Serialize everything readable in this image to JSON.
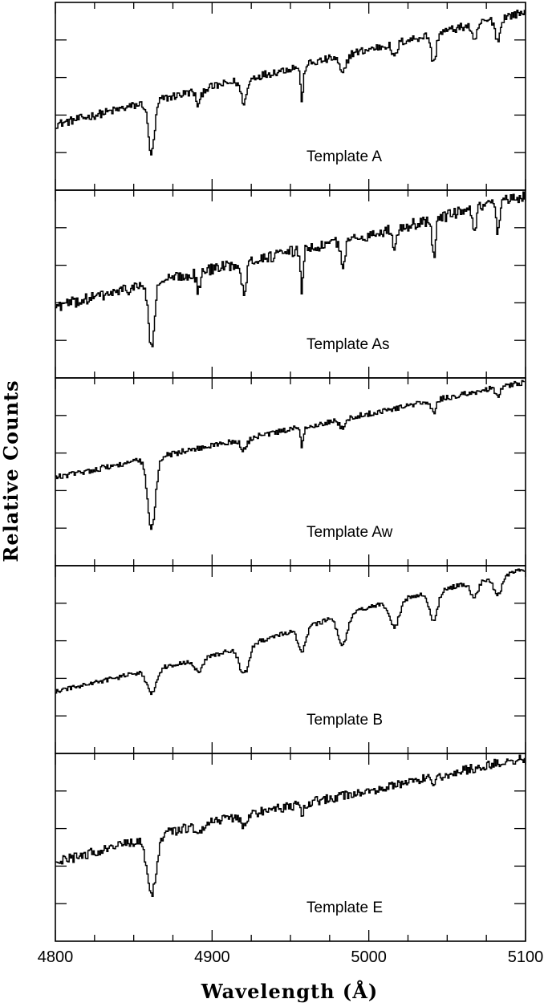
{
  "chart_data": {
    "type": "line",
    "xlabel": "Wavelength (Å)",
    "ylabel": "Relative Counts",
    "xlim": [
      4800,
      5100
    ],
    "x_ticks": [
      4800,
      4900,
      5000,
      5100
    ],
    "y_tick_labels_shown": false,
    "shared_x_axis": true,
    "stacked_panels": 5,
    "grid": false,
    "series": [
      {
        "name": "Template A",
        "label": "Template A",
        "continuum": [
          [
            4800,
            0.35
          ],
          [
            4900,
            0.55
          ],
          [
            5000,
            0.75
          ],
          [
            5100,
            0.95
          ]
        ],
        "absorption_lines": [
          [
            4861,
            0.28,
            2.0
          ],
          [
            4891,
            0.08,
            1.5
          ],
          [
            4920,
            0.12,
            2.0
          ],
          [
            4957,
            0.18,
            1.0
          ],
          [
            4983,
            0.1,
            2.0
          ],
          [
            5016,
            0.08,
            1.5
          ],
          [
            5041,
            0.16,
            1.5
          ],
          [
            5067,
            0.1,
            1.5
          ],
          [
            5082,
            0.12,
            1.5
          ]
        ],
        "noise": 0.022
      },
      {
        "name": "Template As",
        "label": "Template As",
        "continuum": [
          [
            4800,
            0.38
          ],
          [
            4900,
            0.58
          ],
          [
            5000,
            0.76
          ],
          [
            5100,
            0.97
          ]
        ],
        "absorption_lines": [
          [
            4861,
            0.35,
            1.8
          ],
          [
            4891,
            0.1,
            1.2
          ],
          [
            4920,
            0.15,
            1.5
          ],
          [
            4957,
            0.22,
            0.8
          ],
          [
            4983,
            0.12,
            1.5
          ],
          [
            5016,
            0.1,
            1.2
          ],
          [
            5041,
            0.2,
            1.2
          ],
          [
            5067,
            0.13,
            1.2
          ],
          [
            5082,
            0.16,
            1.2
          ]
        ],
        "noise": 0.03
      },
      {
        "name": "Template Aw",
        "label": "Template Aw",
        "continuum": [
          [
            4800,
            0.47
          ],
          [
            4900,
            0.64
          ],
          [
            5000,
            0.81
          ],
          [
            5100,
            0.98
          ]
        ],
        "absorption_lines": [
          [
            4861,
            0.38,
            2.5
          ],
          [
            4920,
            0.06,
            2.0
          ],
          [
            4957,
            0.1,
            1.0
          ],
          [
            4983,
            0.05,
            2.0
          ],
          [
            5041,
            0.07,
            1.5
          ],
          [
            5082,
            0.05,
            1.5
          ]
        ],
        "noise": 0.015
      },
      {
        "name": "Template B",
        "label": "Template B",
        "continuum": [
          [
            4800,
            0.33
          ],
          [
            4900,
            0.52
          ],
          [
            5000,
            0.78
          ],
          [
            5100,
            0.98
          ]
        ],
        "absorption_lines": [
          [
            4861,
            0.12,
            3.0
          ],
          [
            4891,
            0.07,
            2.5
          ],
          [
            4920,
            0.15,
            3.0
          ],
          [
            4957,
            0.12,
            2.5
          ],
          [
            4983,
            0.16,
            3.0
          ],
          [
            5016,
            0.14,
            3.0
          ],
          [
            5041,
            0.16,
            2.5
          ],
          [
            5067,
            0.08,
            2.5
          ],
          [
            5082,
            0.1,
            2.5
          ]
        ],
        "noise": 0.012
      },
      {
        "name": "Template E",
        "label": "Template E",
        "continuum": [
          [
            4800,
            0.42
          ],
          [
            4900,
            0.64
          ],
          [
            5000,
            0.8
          ],
          [
            5100,
            0.98
          ]
        ],
        "absorption_lines": [
          [
            4861,
            0.3,
            3.0
          ],
          [
            4891,
            0.05,
            2.0
          ],
          [
            4920,
            0.06,
            2.0
          ],
          [
            4957,
            0.05,
            1.5
          ],
          [
            5041,
            0.06,
            1.5
          ]
        ],
        "noise": 0.025
      }
    ]
  }
}
